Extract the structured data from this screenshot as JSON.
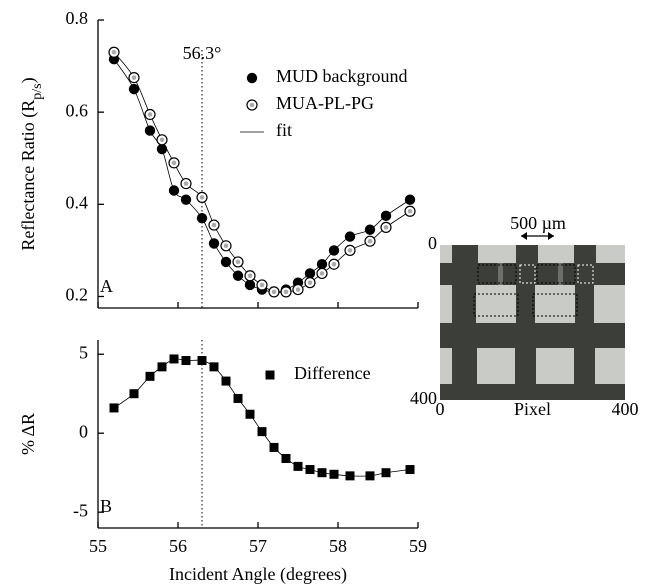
{
  "chart_data": [
    {
      "type": "scatter",
      "ylabel": [
        "Reflectance Ratio (R",
        "p/s",
        ")"
      ],
      "panel_label": "A",
      "annotation": "56.3°",
      "vline": 56.3,
      "x": [
        55.2,
        55.45,
        55.65,
        55.8,
        55.95,
        56.1,
        56.3,
        56.45,
        56.6,
        56.75,
        56.9,
        57.05,
        57.2,
        57.35,
        57.5,
        57.65,
        57.8,
        57.95,
        58.15,
        58.4,
        58.6,
        58.9
      ],
      "series": [
        {
          "name": "MUD background",
          "marker": "filled-circle",
          "color": "#000000",
          "values": [
            0.715,
            0.65,
            0.56,
            0.52,
            0.43,
            0.41,
            0.37,
            0.315,
            0.275,
            0.245,
            0.225,
            0.215,
            0.21,
            0.215,
            0.23,
            0.25,
            0.27,
            0.3,
            0.33,
            0.345,
            0.375,
            0.41
          ]
        },
        {
          "name": "MUA-PL-PG",
          "marker": "open-circle",
          "color": "#000000",
          "values": [
            0.73,
            0.675,
            0.595,
            0.54,
            0.49,
            0.445,
            0.415,
            0.355,
            0.31,
            0.275,
            0.245,
            0.225,
            0.21,
            0.21,
            0.215,
            0.23,
            0.25,
            0.27,
            0.3,
            0.32,
            0.35,
            0.385
          ]
        }
      ],
      "fit": {
        "name": "fit",
        "color": "#000000"
      },
      "xlim": [
        55,
        59
      ],
      "xticks": [
        55,
        56,
        57,
        58,
        59
      ],
      "xtick_labels": false,
      "ylim": [
        0.175,
        0.8
      ],
      "yticks": [
        0.2,
        0.4,
        0.6,
        0.8
      ]
    },
    {
      "type": "scatter",
      "ylabel": [
        "% ΔR"
      ],
      "xlabel": "Incident Angle (degrees)",
      "panel_label": "B",
      "vline": 56.3,
      "x": [
        55.2,
        55.45,
        55.65,
        55.8,
        55.95,
        56.1,
        56.3,
        56.45,
        56.6,
        56.75,
        56.9,
        57.05,
        57.2,
        57.35,
        57.5,
        57.65,
        57.8,
        57.95,
        58.15,
        58.4,
        58.6,
        58.9
      ],
      "series": [
        {
          "name": "Difference",
          "marker": "square",
          "color": "#000000",
          "values": [
            1.6,
            2.5,
            3.6,
            4.2,
            4.7,
            4.6,
            4.6,
            4.2,
            3.3,
            2.2,
            1.2,
            0.1,
            -0.9,
            -1.6,
            -2.1,
            -2.3,
            -2.5,
            -2.6,
            -2.7,
            -2.7,
            -2.5,
            -2.3
          ]
        }
      ],
      "xlim": [
        55,
        59
      ],
      "xticks": [
        55,
        56,
        57,
        58,
        59
      ],
      "xtick_labels": true,
      "ylim": [
        -6,
        5.9
      ],
      "yticks": [
        -5,
        0,
        5
      ]
    },
    {
      "type": "image",
      "scale_label": "500 µm",
      "xlabel": "Pixel",
      "xlim": [
        0,
        400
      ],
      "xticks": [
        0,
        400
      ],
      "ylim": [
        400,
        0
      ],
      "yticks": [
        0,
        400
      ]
    }
  ]
}
